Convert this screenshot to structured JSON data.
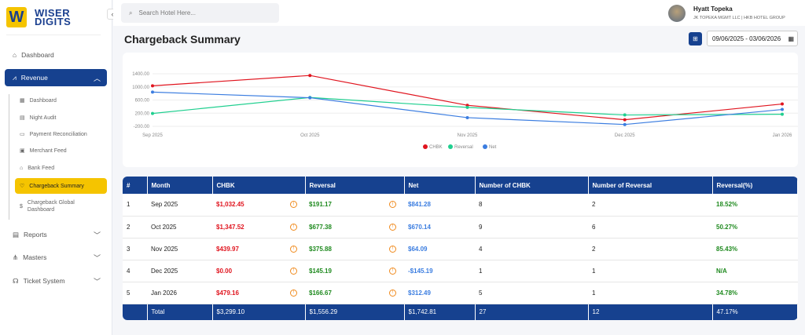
{
  "brand": {
    "logo_letter": "W",
    "line1": "WISER",
    "line2": "DIGITS"
  },
  "sidebar": {
    "items": [
      {
        "label": "Dashboard"
      },
      {
        "label": "Revenue"
      },
      {
        "label": "Reports"
      },
      {
        "label": "Masters"
      },
      {
        "label": "Ticket System"
      }
    ],
    "revenue_sub": [
      {
        "label": "Dashboard"
      },
      {
        "label": "Night Audit"
      },
      {
        "label": "Payment Reconciliation"
      },
      {
        "label": "Merchant Feed"
      },
      {
        "label": "Bank Feed"
      },
      {
        "label": "Chargeback Summary"
      },
      {
        "label": "Chargeback Global Dashboard"
      }
    ]
  },
  "search": {
    "placeholder": "Search Hotel Here..."
  },
  "user": {
    "name": "Hyatt Topeka",
    "org": "JK TOPEKA MGMT LLC | HKB HOTEL GROUP"
  },
  "page": {
    "title": "Chargeback Summary",
    "date_range": "09/06/2025 - 03/06/2026"
  },
  "colors": {
    "primary": "#16418f",
    "accent": "#f5c400",
    "chbk": "#e0141e",
    "reversal": "#1fcf8f",
    "net": "#3b7de0"
  },
  "chart_data": {
    "type": "line",
    "categories": [
      "Sep 2025",
      "Oct 2025",
      "Nov 2025",
      "Dec 2025",
      "Jan 2026"
    ],
    "series": [
      {
        "name": "CHBK",
        "values": [
          1032.45,
          1347.52,
          439.97,
          0,
          479.16
        ]
      },
      {
        "name": "Reversal",
        "values": [
          191.17,
          677.38,
          375.88,
          145.19,
          166.67
        ]
      },
      {
        "name": "Net",
        "values": [
          841.28,
          670.14,
          64.09,
          -145.19,
          312.49
        ]
      }
    ],
    "yticks": [
      "1400.00",
      "1000.00",
      "600.00",
      "200.00",
      "-200.00"
    ],
    "ylim": [
      -200,
      1400
    ],
    "grid": true,
    "legend": "bottom"
  },
  "table": {
    "headers": [
      "#",
      "Month",
      "CHBK",
      "Reversal",
      "Net",
      "Number of CHBK",
      "Number of Reversal",
      "Reversal(%)"
    ],
    "rows": [
      [
        "1",
        "Sep 2025",
        "$1,032.45",
        "$191.17",
        "$841.28",
        "8",
        "2",
        "18.52%"
      ],
      [
        "2",
        "Oct 2025",
        "$1,347.52",
        "$677.38",
        "$670.14",
        "9",
        "6",
        "50.27%"
      ],
      [
        "3",
        "Nov 2025",
        "$439.97",
        "$375.88",
        "$64.09",
        "4",
        "2",
        "85.43%"
      ],
      [
        "4",
        "Dec 2025",
        "$0.00",
        "$145.19",
        "-$145.19",
        "1",
        "1",
        "N/A"
      ],
      [
        "5",
        "Jan 2026",
        "$479.16",
        "$166.67",
        "$312.49",
        "5",
        "1",
        "34.78%"
      ]
    ],
    "total": [
      "",
      "Total",
      "$3,299.10",
      "$1,556.29",
      "$1,742.81",
      "27",
      "12",
      "47.17%"
    ]
  }
}
